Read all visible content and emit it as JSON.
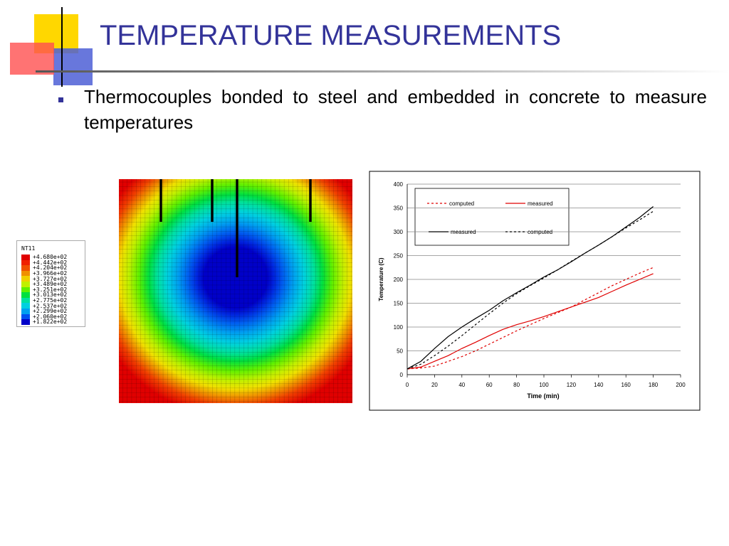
{
  "title": "TEMPERATURE MEASUREMENTS",
  "bullet": "Thermocouples bonded to steel and embedded in concrete to measure temperatures",
  "contour_legend": {
    "title": "NT11",
    "labels": [
      "+4.680e+02",
      "+4.442e+02",
      "+4.204e+02",
      "+3.966e+02",
      "+3.727e+02",
      "+3.489e+02",
      "+3.251e+02",
      "+3.013e+02",
      "+2.775e+02",
      "+2.537e+02",
      "+2.299e+02",
      "+2.060e+02",
      "+1.822e+02"
    ]
  },
  "chart_data": {
    "type": "line",
    "x_label": "Time (min)",
    "y_label": "Temperature (C)",
    "x": [
      0,
      10,
      20,
      30,
      40,
      50,
      60,
      70,
      80,
      90,
      100,
      110,
      120,
      130,
      140,
      150,
      160,
      170,
      180
    ],
    "series": [
      {
        "name": "computed",
        "color": "#e00000",
        "dashed": true,
        "values": [
          12,
          14,
          18,
          28,
          38,
          50,
          64,
          78,
          92,
          105,
          118,
          130,
          142,
          157,
          172,
          187,
          200,
          213,
          225
        ]
      },
      {
        "name": "measured",
        "color": "#e00000",
        "dashed": false,
        "values": [
          12,
          16,
          28,
          40,
          55,
          68,
          82,
          95,
          105,
          113,
          122,
          132,
          142,
          152,
          162,
          175,
          188,
          200,
          212
        ]
      },
      {
        "name": "measured",
        "color": "#000000",
        "dashed": false,
        "values": [
          12,
          28,
          55,
          80,
          100,
          118,
          135,
          155,
          172,
          188,
          205,
          220,
          237,
          255,
          272,
          290,
          310,
          330,
          353
        ]
      },
      {
        "name": "computed",
        "color": "#000000",
        "dashed": true,
        "values": [
          12,
          22,
          40,
          60,
          82,
          105,
          128,
          150,
          170,
          187,
          203,
          220,
          238,
          255,
          272,
          290,
          308,
          325,
          343
        ]
      }
    ],
    "xlim": [
      0,
      200
    ],
    "xticks": [
      0,
      20,
      40,
      60,
      80,
      100,
      120,
      140,
      160,
      180,
      200
    ],
    "ylim": [
      0,
      400
    ],
    "yticks": [
      0,
      50,
      100,
      150,
      200,
      250,
      300,
      350,
      400
    ],
    "grid": true
  }
}
